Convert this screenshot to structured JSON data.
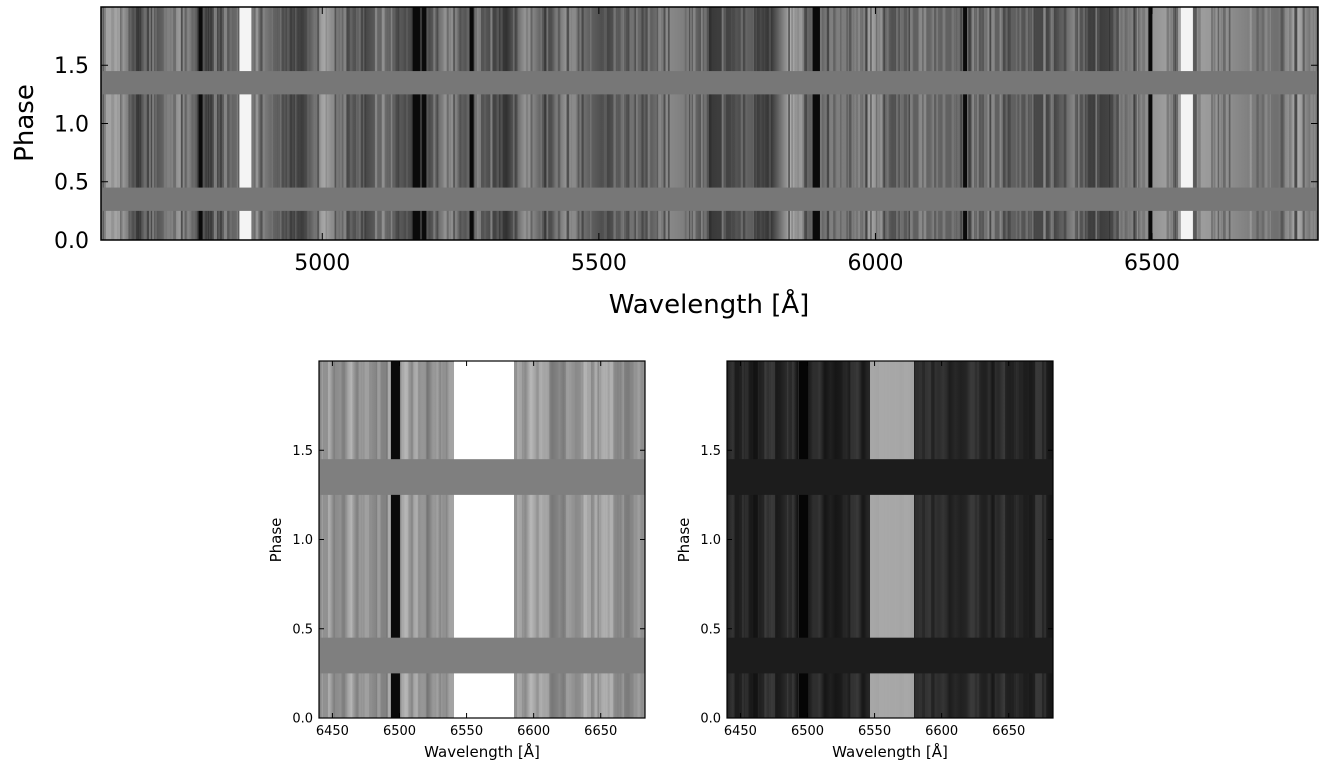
{
  "chart_data": [
    {
      "type": "heatmap",
      "title": "",
      "xlabel": "Wavelength [Å]",
      "ylabel": "Phase",
      "xlim": [
        4600,
        6800
      ],
      "ylim": [
        0.0,
        2.0
      ],
      "x_ticks": [
        5000,
        5500,
        6000,
        6500
      ],
      "y_ticks": [
        0.0,
        0.5,
        1.0,
        1.5
      ],
      "x_tick_labels": [
        "5000",
        "5500",
        "6000",
        "6500"
      ],
      "y_tick_labels": [
        "0.0",
        "0.5",
        "1.0",
        "1.5"
      ],
      "colormap": "grayscale",
      "masked_phase_bands": [
        [
          0.25,
          0.45
        ],
        [
          1.25,
          1.45
        ]
      ],
      "mask_color": "#777777",
      "dark_lines_A": [
        4780,
        5167,
        5173,
        5184,
        5270,
        5890,
        5896,
        6162,
        6497
      ],
      "bright_lines_A": [
        4861,
        6563
      ]
    },
    {
      "type": "heatmap",
      "title": "",
      "xlabel": "Wavelength [Å]",
      "ylabel": "Phase",
      "xlim": [
        6440,
        6683
      ],
      "ylim": [
        0.0,
        2.0
      ],
      "x_ticks": [
        6450,
        6500,
        6550,
        6600,
        6650
      ],
      "y_ticks": [
        0.0,
        0.5,
        1.0,
        1.5
      ],
      "x_tick_labels": [
        "6450",
        "6500",
        "6550",
        "6600",
        "6650"
      ],
      "y_tick_labels": [
        "0.0",
        "0.5",
        "1.0",
        "1.5"
      ],
      "colormap": "grayscale",
      "masked_phase_bands": [
        [
          0.25,
          0.45
        ],
        [
          1.25,
          1.45
        ]
      ],
      "mask_color": "#7f7f7f",
      "dark_lines_A": [
        6497
      ],
      "bright_lines_A": [
        6563
      ]
    },
    {
      "type": "heatmap",
      "title": "",
      "xlabel": "Wavelength [Å]",
      "ylabel": "Phase",
      "xlim": [
        6440,
        6683
      ],
      "ylim": [
        0.0,
        2.0
      ],
      "x_ticks": [
        6450,
        6500,
        6550,
        6600,
        6650
      ],
      "y_ticks": [
        0.0,
        0.5,
        1.0,
        1.5
      ],
      "x_tick_labels": [
        "6450",
        "6500",
        "6550",
        "6600",
        "6650"
      ],
      "y_tick_labels": [
        "0.0",
        "0.5",
        "1.0",
        "1.5"
      ],
      "colormap": "grayscale",
      "masked_phase_bands": [
        [
          0.25,
          0.45
        ],
        [
          1.25,
          1.45
        ]
      ],
      "mask_color": "#1c1c1c",
      "dark_lines_A": [
        6497
      ],
      "bright_lines_A": [
        6563
      ]
    }
  ]
}
